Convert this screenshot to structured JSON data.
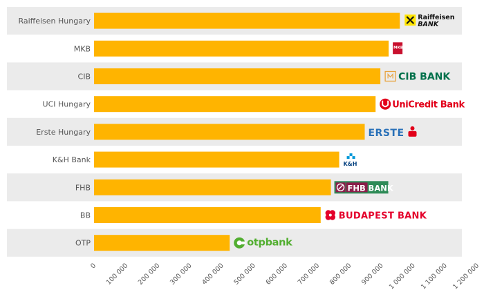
{
  "chart_data": {
    "type": "bar",
    "orientation": "horizontal",
    "categories": [
      "Raiffeisen Hungary",
      "MKB",
      "CIB",
      "UCI Hungary",
      "Erste Hungary",
      "K&H Bank",
      "FHB",
      "BB",
      "OTP"
    ],
    "values": [
      958000,
      923000,
      897000,
      882000,
      848000,
      768000,
      742000,
      710000,
      425000
    ],
    "xlim": [
      0,
      1200000
    ],
    "x_ticks": [
      0,
      100000,
      200000,
      300000,
      400000,
      500000,
      600000,
      700000,
      800000,
      900000,
      1000000,
      1100000,
      1200000
    ],
    "x_tick_labels": [
      "0",
      "100 000",
      "200 000",
      "300 000",
      "400 000",
      "500 000",
      "600 000",
      "700 000",
      "800 000",
      "900 000",
      "1 000 000",
      "1 100 000",
      "1 200 000"
    ],
    "title": "",
    "xlabel": "",
    "ylabel": "",
    "grid": false,
    "bar_color": "#FFB400",
    "band_color": "#EBEBEB",
    "logos": [
      {
        "category": "Raiffeisen Hungary",
        "icon": "raiffeisen-logo",
        "line1": "Raiffeisen",
        "line2": "BANK"
      },
      {
        "category": "MKB",
        "icon": "mkb-logo",
        "line1": "MKB"
      },
      {
        "category": "CIB",
        "icon": "cib-logo",
        "line1": "CIB BANK"
      },
      {
        "category": "UCI Hungary",
        "icon": "unicredit-logo",
        "line1": "UniCredit Bank"
      },
      {
        "category": "Erste Hungary",
        "icon": "erste-logo",
        "line1": "ERSTE"
      },
      {
        "category": "K&H Bank",
        "icon": "kh-logo",
        "line1": "K&H"
      },
      {
        "category": "FHB",
        "icon": "fhb-logo",
        "line1": "FHB",
        "line2": "BANK"
      },
      {
        "category": "BB",
        "icon": "budapest-bank-logo",
        "line1": "BUDAPEST BANK"
      },
      {
        "category": "OTP",
        "icon": "otp-logo",
        "line1": "otpbank"
      }
    ]
  }
}
